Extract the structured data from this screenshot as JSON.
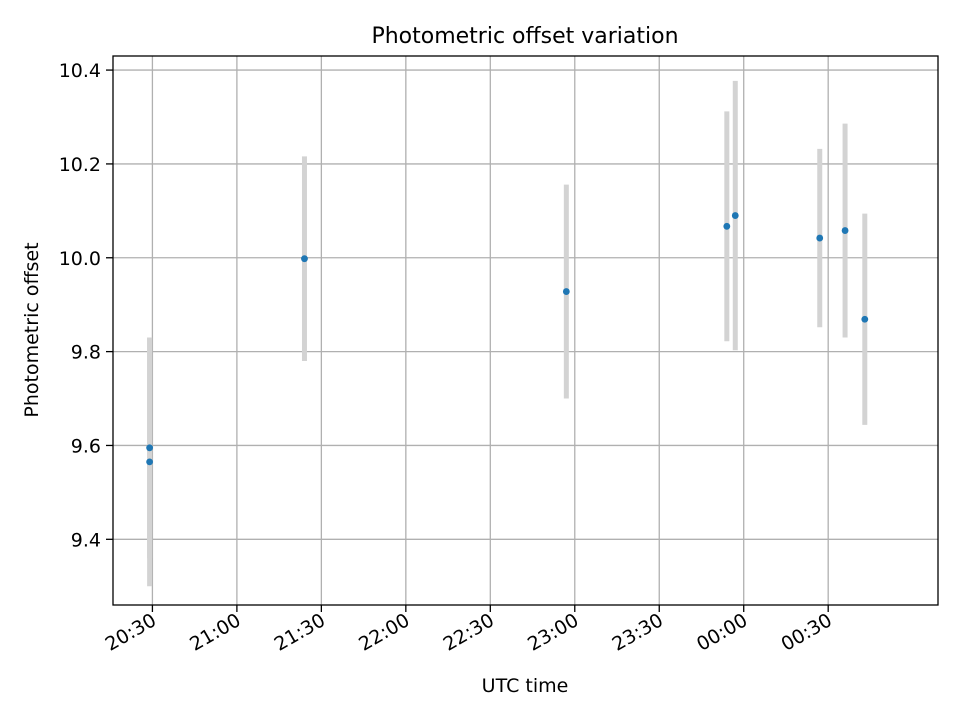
{
  "chart_data": {
    "type": "scatter",
    "title": "Photometric offset variation",
    "xlabel": "UTC time",
    "ylabel": "Photometric offset",
    "grid": true,
    "x_axis_kind": "time",
    "xlim": [
      "20:16",
      "01:09"
    ],
    "ylim": [
      9.26,
      10.43
    ],
    "x_ticks": [
      "20:30",
      "21:00",
      "21:30",
      "22:00",
      "22:30",
      "23:00",
      "23:30",
      "00:00",
      "00:30"
    ],
    "y_ticks": [
      "9.4",
      "9.6",
      "9.8",
      "10.0",
      "10.2",
      "10.4"
    ],
    "marker_color": "#1f77b4",
    "errorbar_color": "#d3d3d3",
    "points": [
      {
        "time": "20:29",
        "y": 9.565,
        "yerr": 0.265
      },
      {
        "time": "20:29",
        "y": 9.595,
        "yerr": 0.235
      },
      {
        "time": "21:24",
        "y": 9.998,
        "yerr": 0.218
      },
      {
        "time": "22:57",
        "y": 9.928,
        "yerr": 0.228
      },
      {
        "time": "23:54",
        "y": 10.067,
        "yerr": 0.245
      },
      {
        "time": "23:57",
        "y": 10.09,
        "yerr": 0.287
      },
      {
        "time": "00:27",
        "y": 10.042,
        "yerr": 0.19
      },
      {
        "time": "00:36",
        "y": 10.058,
        "yerr": 0.228
      },
      {
        "time": "00:43",
        "y": 9.869,
        "yerr": 0.225
      }
    ]
  }
}
